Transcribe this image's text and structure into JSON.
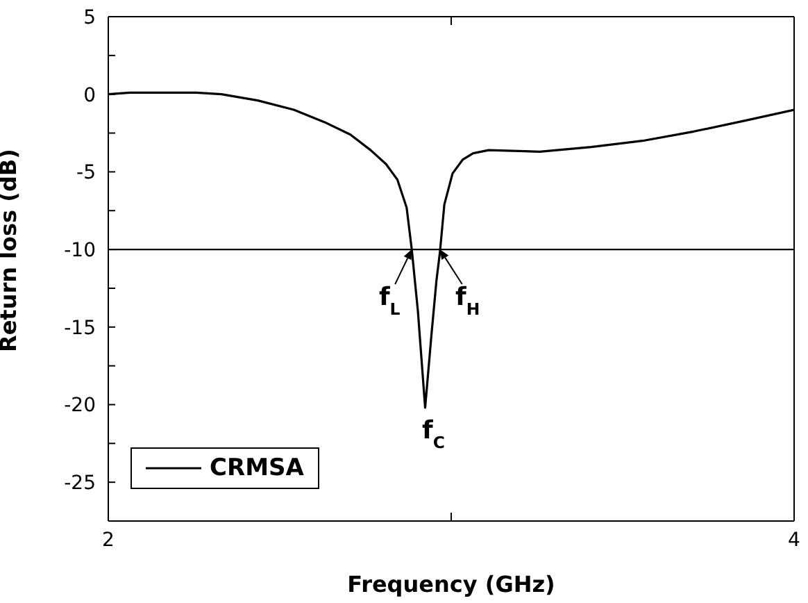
{
  "chart_data": {
    "type": "line",
    "xlabel": "Frequency (GHz)",
    "ylabel": "Return loss (dB)",
    "x": [
      2,
      2.063,
      2.257,
      2.33,
      2.436,
      2.541,
      2.631,
      2.706,
      2.765,
      2.81,
      2.843,
      2.87,
      2.885,
      2.903,
      2.924,
      2.942,
      2.957,
      2.967,
      2.98,
      3.004,
      3.034,
      3.064,
      3.109,
      3.258,
      3.408,
      3.558,
      3.707,
      3.857,
      4
    ],
    "series": [
      {
        "name": "CRMSA",
        "color": "#000000",
        "values": [
          0,
          0.1,
          0.1,
          0,
          -0.4,
          -1,
          -1.8,
          -2.6,
          -3.6,
          -4.5,
          -5.5,
          -7.3,
          -10,
          -14,
          -20.2,
          -15.6,
          -12,
          -10.2,
          -7.1,
          -5.1,
          -4.2,
          -3.8,
          -3.6,
          -3.7,
          -3.4,
          -3,
          -2.4,
          -1.7,
          -1
        ]
      }
    ],
    "xlim": [
      2,
      4
    ],
    "xticks": [
      2,
      {
        "value": 3,
        "label": null
      },
      4
    ],
    "ylim": [
      -27.5,
      5
    ],
    "yticks": [
      5,
      {
        "value": 2.5,
        "label": null
      },
      0,
      {
        "value": -2.5,
        "label": null
      },
      -5,
      {
        "value": -7.5,
        "label": null
      },
      -10,
      {
        "value": -12.5,
        "label": null
      },
      -15,
      {
        "value": -17.5,
        "label": null
      },
      -20,
      {
        "value": -22.5,
        "label": null
      },
      -25
    ],
    "ref_lines": [
      {
        "axis": "y",
        "value": -10,
        "color": "#000000"
      }
    ],
    "annotations": [
      {
        "text": "f$_{L}$",
        "x": 2.885,
        "y": -10
      },
      {
        "text": "f$_{H}$",
        "x": 2.967,
        "y": -10
      },
      {
        "text": "f$_{C}$",
        "x": 2.924,
        "y": -20.2
      }
    ],
    "legend": "bottom left",
    "grid": false,
    "marker": "none",
    "line_style": "solid"
  }
}
